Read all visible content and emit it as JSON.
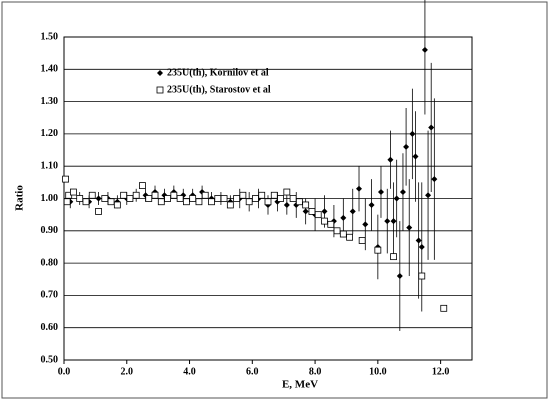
{
  "chart_data": {
    "type": "scatter",
    "xlabel": "E, MeV",
    "ylabel": "Ratio",
    "xlim": [
      0,
      13
    ],
    "ylim": [
      0.5,
      1.5
    ],
    "xticks": [
      {
        "value": 0,
        "label": "0.0"
      },
      {
        "value": 2,
        "label": "2.0"
      },
      {
        "value": 4,
        "label": "4.0"
      },
      {
        "value": 6,
        "label": "6.0"
      },
      {
        "value": 8,
        "label": "8.0"
      },
      {
        "value": 10,
        "label": "10.0"
      },
      {
        "value": 12,
        "label": "12.0"
      }
    ],
    "yticks": [
      {
        "value": 0.5,
        "label": "0.50"
      },
      {
        "value": 0.6,
        "label": "0.60"
      },
      {
        "value": 0.7,
        "label": "0.70"
      },
      {
        "value": 0.8,
        "label": "0.80"
      },
      {
        "value": 0.9,
        "label": "0.90"
      },
      {
        "value": 1.0,
        "label": "1.00"
      },
      {
        "value": 1.1,
        "label": "1.10"
      },
      {
        "value": 1.2,
        "label": "1.20"
      },
      {
        "value": 1.3,
        "label": "1.30"
      },
      {
        "value": 1.4,
        "label": "1.40"
      },
      {
        "value": 1.5,
        "label": "1.50"
      }
    ],
    "grid": true,
    "series": [
      {
        "name": "235U(th), Kornilov et al",
        "color": "#000000",
        "marker": "diamond",
        "x": [
          0.2,
          0.5,
          0.8,
          1.1,
          1.4,
          1.7,
          2.0,
          2.3,
          2.6,
          2.9,
          3.2,
          3.5,
          3.8,
          4.1,
          4.4,
          4.7,
          5.0,
          5.3,
          5.6,
          5.9,
          6.2,
          6.5,
          6.8,
          7.1,
          7.4,
          7.7,
          8.0,
          8.3,
          8.6,
          8.9,
          9.2,
          9.4,
          9.6,
          9.8,
          10.0,
          10.1,
          10.3,
          10.4,
          10.5,
          10.6,
          10.7,
          10.8,
          10.9,
          11.0,
          11.1,
          11.2,
          11.3,
          11.4,
          11.5,
          11.6,
          11.7,
          11.8
        ],
        "values": [
          0.99,
          1.0,
          0.99,
          1.0,
          1.0,
          0.99,
          1.0,
          1.01,
          1.01,
          1.02,
          1.01,
          1.02,
          1.01,
          1.01,
          1.02,
          1.0,
          1.0,
          0.99,
          1.0,
          0.99,
          1.0,
          0.98,
          0.99,
          0.98,
          0.98,
          0.96,
          0.95,
          0.96,
          0.93,
          0.94,
          0.96,
          1.03,
          0.92,
          0.98,
          0.85,
          1.02,
          0.93,
          1.12,
          0.93,
          1.0,
          0.76,
          1.02,
          1.16,
          0.91,
          1.2,
          1.13,
          0.87,
          0.85,
          1.46,
          1.01,
          1.22,
          1.06
        ],
        "errors": [
          0.02,
          0.02,
          0.02,
          0.02,
          0.02,
          0.02,
          0.02,
          0.02,
          0.02,
          0.02,
          0.02,
          0.02,
          0.02,
          0.02,
          0.02,
          0.02,
          0.02,
          0.02,
          0.03,
          0.03,
          0.03,
          0.03,
          0.03,
          0.03,
          0.04,
          0.04,
          0.05,
          0.05,
          0.05,
          0.06,
          0.07,
          0.07,
          0.08,
          0.08,
          0.1,
          0.08,
          0.1,
          0.09,
          0.12,
          0.12,
          0.17,
          0.12,
          0.12,
          0.15,
          0.14,
          0.14,
          0.18,
          0.2,
          0.2,
          0.2,
          0.2,
          0.25
        ]
      },
      {
        "name": "235U(th), Starostov et al",
        "color": "#000000",
        "marker": "square",
        "x": [
          0.05,
          0.1,
          0.15,
          0.3,
          0.5,
          0.7,
          0.9,
          1.1,
          1.3,
          1.5,
          1.7,
          1.9,
          2.1,
          2.3,
          2.5,
          2.7,
          2.9,
          3.1,
          3.3,
          3.5,
          3.7,
          3.9,
          4.1,
          4.3,
          4.5,
          4.7,
          4.9,
          5.1,
          5.3,
          5.5,
          5.7,
          5.9,
          6.1,
          6.3,
          6.5,
          6.7,
          6.9,
          7.1,
          7.3,
          7.5,
          7.7,
          7.9,
          8.1,
          8.3,
          8.5,
          8.7,
          8.9,
          9.1,
          9.5,
          10.0,
          10.5,
          11.4,
          12.1
        ],
        "values": [
          1.06,
          0.99,
          1.01,
          1.02,
          1.0,
          0.99,
          1.01,
          0.96,
          1.0,
          0.99,
          0.98,
          1.01,
          1.0,
          1.01,
          1.04,
          1.0,
          1.01,
          0.99,
          1.0,
          1.01,
          1.0,
          0.99,
          1.0,
          0.99,
          1.01,
          0.99,
          1.0,
          1.0,
          0.98,
          1.0,
          1.01,
          0.99,
          1.0,
          1.01,
          0.99,
          1.01,
          1.0,
          1.02,
          1.0,
          0.99,
          0.98,
          0.96,
          0.95,
          0.93,
          0.92,
          0.9,
          0.89,
          0.88,
          0.87,
          0.84,
          0.82,
          0.76,
          0.66
        ]
      }
    ]
  }
}
